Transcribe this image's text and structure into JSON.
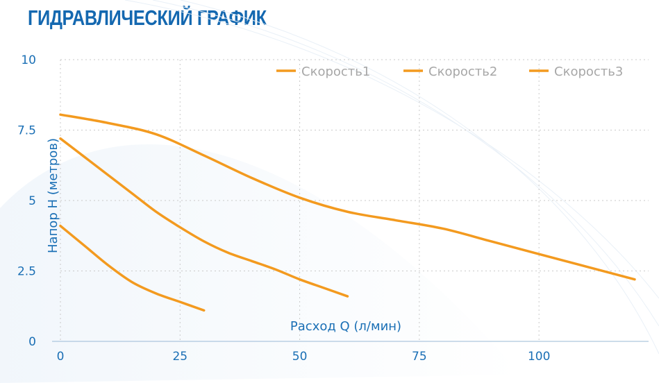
{
  "header": {
    "title": "ГИДРАВЛИЧЕСКИЙ ГРАФИК"
  },
  "colors": {
    "title": "#1468b0",
    "axis": "#1a6fb5",
    "series": "#f39a1f",
    "legend_text": "#a7a7a7"
  },
  "chart_data": {
    "type": "line",
    "title": "",
    "xlabel": "Расход Q (л/мин)",
    "ylabel": "Напор H (метров)",
    "xlim": [
      0,
      120
    ],
    "ylim": [
      0,
      10
    ],
    "xticks": [
      "0",
      "25",
      "50",
      "75",
      "100"
    ],
    "xtick_values": [
      0,
      25,
      50,
      75,
      100
    ],
    "yticks": [
      "0",
      "2.5",
      "5",
      "7.5",
      "10"
    ],
    "ytick_values": [
      0,
      2.5,
      5,
      7.5,
      10
    ],
    "grid": true,
    "legend_position": "top-right",
    "series": [
      {
        "name": "Скорость1",
        "x": [
          0,
          10,
          20,
          30,
          40,
          50,
          60,
          70,
          80,
          90,
          100,
          110,
          120
        ],
        "y": [
          8.05,
          7.75,
          7.35,
          6.6,
          5.8,
          5.1,
          4.6,
          4.3,
          4.0,
          3.55,
          3.1,
          2.65,
          2.2
        ]
      },
      {
        "name": "Скорость2",
        "x": [
          0,
          5,
          10,
          15,
          20,
          25,
          30,
          35,
          40,
          45,
          50,
          55,
          60
        ],
        "y": [
          7.2,
          6.55,
          5.9,
          5.25,
          4.6,
          4.05,
          3.55,
          3.15,
          2.85,
          2.55,
          2.2,
          1.9,
          1.6
        ]
      },
      {
        "name": "Скорость3",
        "x": [
          0,
          5,
          10,
          15,
          20,
          25,
          30
        ],
        "y": [
          4.1,
          3.4,
          2.7,
          2.1,
          1.7,
          1.4,
          1.1
        ]
      }
    ]
  }
}
